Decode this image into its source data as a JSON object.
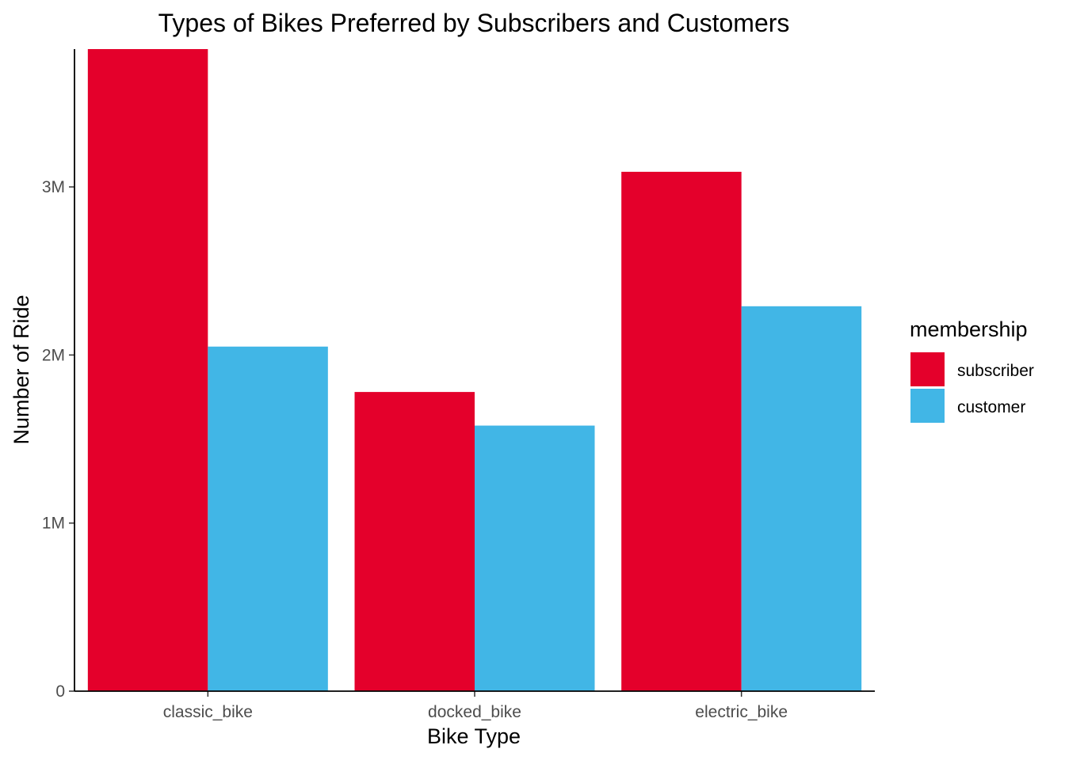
{
  "chart_data": {
    "type": "bar",
    "title": "Types of Bikes Preferred by Subscribers and Customers",
    "xlabel": "Bike Type",
    "ylabel": "Number of Ride",
    "categories": [
      "classic_bike",
      "docked_bike",
      "electric_bike"
    ],
    "series": [
      {
        "name": "subscriber",
        "color": "#E4002B",
        "values": [
          3820000,
          1780000,
          3090000
        ]
      },
      {
        "name": "customer",
        "color": "#41B6E6",
        "values": [
          2050000,
          1580000,
          2290000
        ]
      }
    ],
    "ylim": [
      0,
      3820000
    ],
    "yticks": [
      {
        "value": 0,
        "label": "0"
      },
      {
        "value": 1000000,
        "label": "1M"
      },
      {
        "value": 2000000,
        "label": "2M"
      },
      {
        "value": 3000000,
        "label": "3M"
      }
    ],
    "grid": false,
    "legend": {
      "title": "membership",
      "position": "right"
    }
  }
}
